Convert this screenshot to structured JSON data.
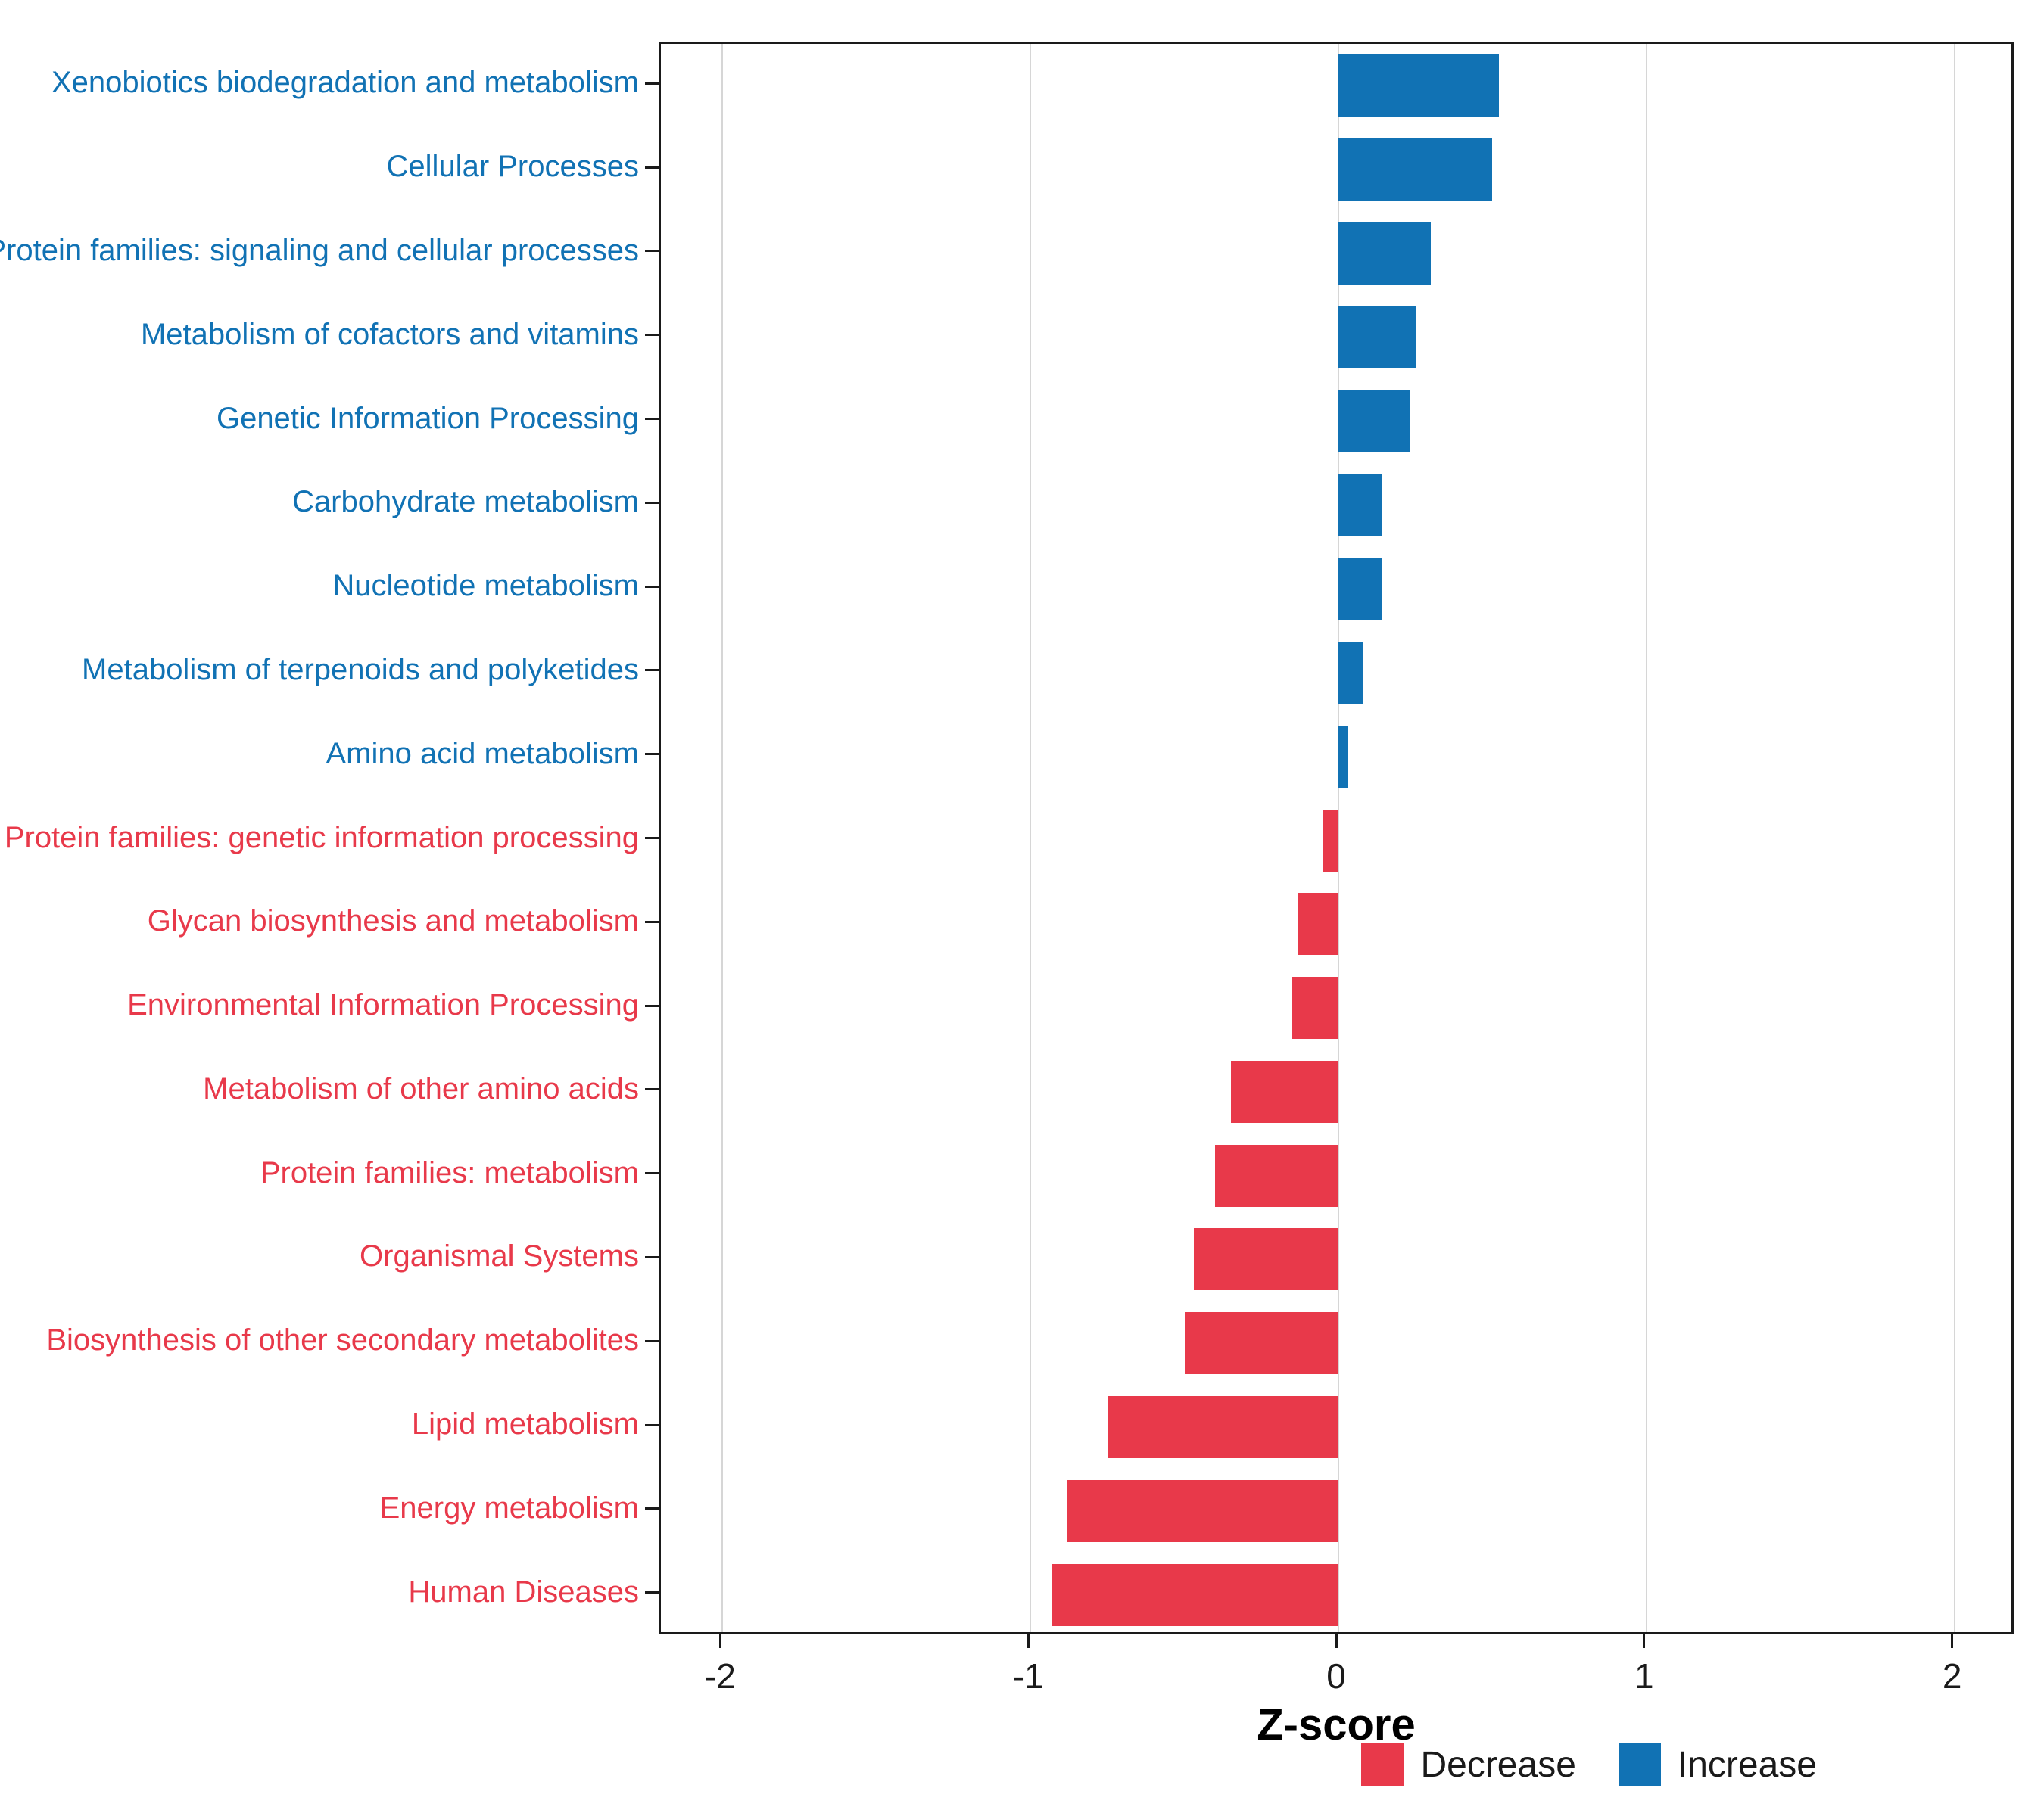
{
  "chart_data": {
    "type": "bar",
    "orientation": "horizontal",
    "title": "",
    "xlabel": "Z-score",
    "ylabel": "",
    "xlim": [
      -2.2,
      2.2
    ],
    "xticks": [
      -2,
      -1,
      0,
      1,
      2
    ],
    "grid": "vertical-major",
    "legend": {
      "position": "bottom-right",
      "decrease_label": "Decrease",
      "increase_label": "Increase"
    },
    "rows": [
      {
        "label": "Xenobiotics biodegradation and metabolism",
        "value": 0.52,
        "group": "Increase"
      },
      {
        "label": "Cellular Processes",
        "value": 0.5,
        "group": "Increase"
      },
      {
        "label": "Protein families: signaling and cellular processes",
        "value": 0.3,
        "group": "Increase"
      },
      {
        "label": "Metabolism of cofactors and vitamins",
        "value": 0.25,
        "group": "Increase"
      },
      {
        "label": "Genetic Information Processing",
        "value": 0.23,
        "group": "Increase"
      },
      {
        "label": "Carbohydrate metabolism",
        "value": 0.14,
        "group": "Increase"
      },
      {
        "label": "Nucleotide metabolism",
        "value": 0.14,
        "group": "Increase"
      },
      {
        "label": "Metabolism of terpenoids and polyketides",
        "value": 0.08,
        "group": "Increase"
      },
      {
        "label": "Amino acid metabolism",
        "value": 0.03,
        "group": "Increase"
      },
      {
        "label": "Protein families: genetic information processing",
        "value": -0.05,
        "group": "Decrease"
      },
      {
        "label": "Glycan biosynthesis and metabolism",
        "value": -0.13,
        "group": "Decrease"
      },
      {
        "label": "Environmental Information Processing",
        "value": -0.15,
        "group": "Decrease"
      },
      {
        "label": "Metabolism of other amino acids",
        "value": -0.35,
        "group": "Decrease"
      },
      {
        "label": "Protein families: metabolism",
        "value": -0.4,
        "group": "Decrease"
      },
      {
        "label": "Organismal Systems",
        "value": -0.47,
        "group": "Decrease"
      },
      {
        "label": "Biosynthesis of other secondary metabolites",
        "value": -0.5,
        "group": "Decrease"
      },
      {
        "label": "Lipid metabolism",
        "value": -0.75,
        "group": "Decrease"
      },
      {
        "label": "Energy metabolism",
        "value": -0.88,
        "group": "Decrease"
      },
      {
        "label": "Human Diseases",
        "value": -0.93,
        "group": "Decrease"
      }
    ]
  },
  "colors": {
    "increase": "#1172B4",
    "decrease": "#E8394A",
    "grid": "#D6D6D6",
    "axis": "#1A1A1A"
  }
}
